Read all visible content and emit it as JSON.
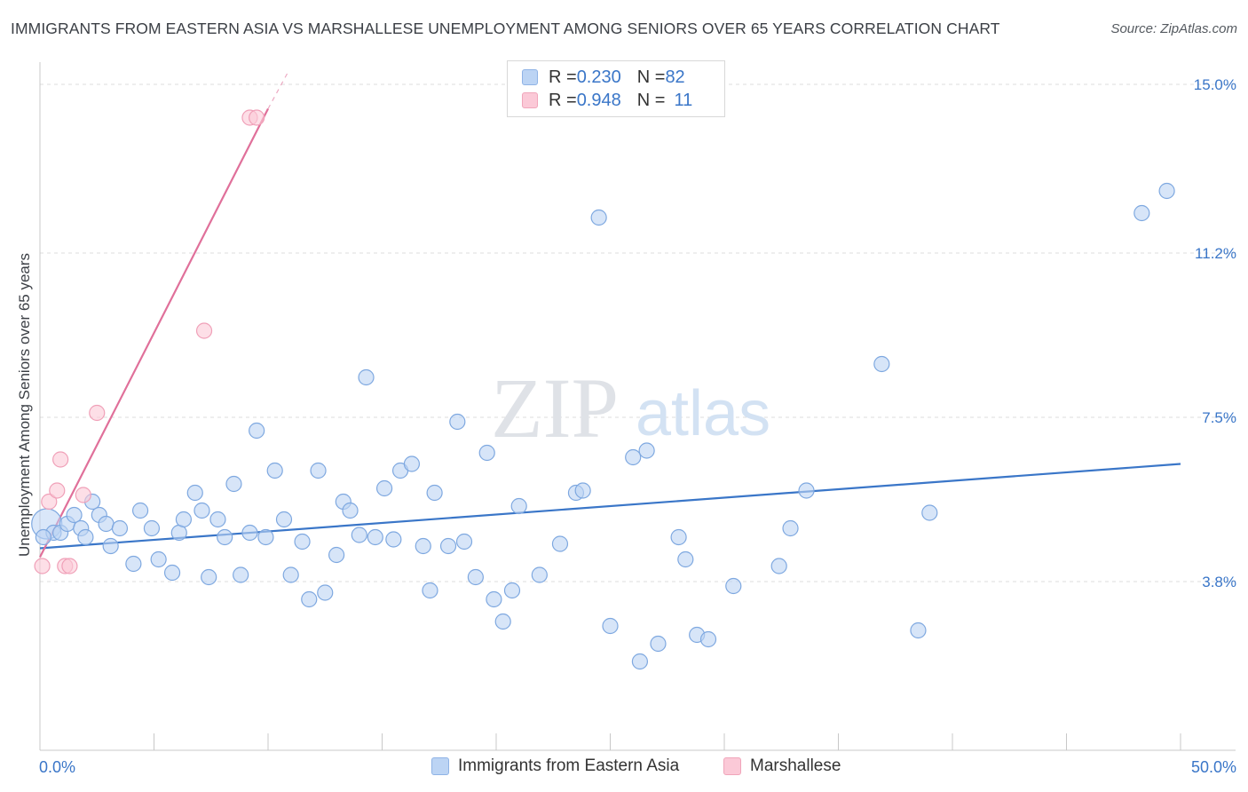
{
  "title": "IMMIGRANTS FROM EASTERN ASIA VS MARSHALLESE UNEMPLOYMENT AMONG SENIORS OVER 65 YEARS CORRELATION CHART",
  "source": "Source: ZipAtlas.com",
  "watermark": {
    "zip": "ZIP",
    "atlas": "atlas"
  },
  "legend": {
    "rows": [
      {
        "r_label": "R = ",
        "r_value": "0.230",
        "n_label": "N = ",
        "n_value": "82"
      },
      {
        "r_label": "R = ",
        "r_value": "0.948",
        "n_label": "N = ",
        "n_value": "11"
      }
    ]
  },
  "colors": {
    "blue": "#3a76c8",
    "blue_fill": "#bcd4f4",
    "blue_stroke": "#7ea8e0",
    "pink": "#e0709a",
    "pink_fill": "#fbc9d7",
    "pink_stroke": "#f0a0b8",
    "tick_label": "#3a76c8",
    "grid": "#dcdcdc"
  },
  "chart_data": {
    "type": "scatter",
    "title": "IMMIGRANTS FROM EASTERN ASIA VS MARSHALLESE UNEMPLOYMENT AMONG SENIORS OVER 65 YEARS CORRELATION CHART",
    "xlabel": "",
    "ylabel": "Unemployment Among Seniors over 65 years",
    "xlim": [
      0,
      50
    ],
    "ylim": [
      0,
      15.3
    ],
    "x_tick_labels": [
      "0.0%",
      "50.0%"
    ],
    "y_ticks": [
      3.8,
      7.5,
      11.2,
      15.0
    ],
    "y_tick_labels": [
      "3.8%",
      "7.5%",
      "11.2%",
      "15.0%"
    ],
    "grid": true,
    "series": [
      {
        "name": "Immigrants from Eastern Asia",
        "color": "blue",
        "trend": {
          "x": [
            0,
            50
          ],
          "y": [
            4.55,
            6.45
          ]
        },
        "points": [
          [
            0.3,
            5.1
          ],
          [
            0.6,
            4.9
          ],
          [
            0.9,
            4.9
          ],
          [
            1.2,
            5.1
          ],
          [
            1.5,
            5.3
          ],
          [
            1.8,
            5.0
          ],
          [
            2.0,
            4.8
          ],
          [
            2.3,
            5.6
          ],
          [
            2.6,
            5.3
          ],
          [
            2.9,
            5.1
          ],
          [
            3.1,
            4.6
          ],
          [
            3.5,
            5.0
          ],
          [
            4.1,
            4.2
          ],
          [
            4.4,
            5.4
          ],
          [
            4.9,
            5.0
          ],
          [
            5.2,
            4.3
          ],
          [
            5.8,
            4.0
          ],
          [
            6.1,
            4.9
          ],
          [
            6.3,
            5.2
          ],
          [
            6.8,
            5.8
          ],
          [
            7.1,
            5.4
          ],
          [
            7.4,
            3.9
          ],
          [
            7.8,
            5.2
          ],
          [
            8.1,
            4.8
          ],
          [
            8.5,
            6.0
          ],
          [
            8.8,
            3.95
          ],
          [
            9.2,
            4.9
          ],
          [
            9.5,
            7.2
          ],
          [
            9.9,
            4.8
          ],
          [
            10.3,
            6.3
          ],
          [
            10.7,
            5.2
          ],
          [
            11.0,
            3.95
          ],
          [
            11.5,
            4.7
          ],
          [
            11.8,
            3.4
          ],
          [
            12.2,
            6.3
          ],
          [
            12.5,
            3.55
          ],
          [
            13.0,
            4.4
          ],
          [
            13.3,
            5.6
          ],
          [
            13.6,
            5.4
          ],
          [
            14.0,
            4.85
          ],
          [
            14.3,
            8.4
          ],
          [
            14.7,
            4.8
          ],
          [
            15.1,
            5.9
          ],
          [
            15.5,
            4.75
          ],
          [
            15.8,
            6.3
          ],
          [
            16.3,
            6.45
          ],
          [
            16.8,
            4.6
          ],
          [
            17.1,
            3.6
          ],
          [
            17.3,
            5.8
          ],
          [
            17.9,
            4.6
          ],
          [
            18.3,
            7.4
          ],
          [
            18.6,
            4.7
          ],
          [
            19.1,
            3.9
          ],
          [
            19.6,
            6.7
          ],
          [
            19.9,
            3.4
          ],
          [
            20.3,
            2.9
          ],
          [
            20.7,
            3.6
          ],
          [
            21.0,
            5.5
          ],
          [
            21.9,
            3.95
          ],
          [
            22.8,
            4.65
          ],
          [
            23.5,
            5.8
          ],
          [
            23.8,
            5.85
          ],
          [
            24.5,
            12.0
          ],
          [
            25.0,
            2.8
          ],
          [
            26.0,
            6.6
          ],
          [
            26.3,
            2.0
          ],
          [
            26.6,
            6.75
          ],
          [
            27.1,
            2.4
          ],
          [
            28.0,
            4.8
          ],
          [
            28.3,
            4.3
          ],
          [
            28.8,
            2.6
          ],
          [
            29.3,
            2.5
          ],
          [
            30.4,
            3.7
          ],
          [
            32.4,
            4.15
          ],
          [
            32.9,
            5.0
          ],
          [
            33.6,
            5.85
          ],
          [
            36.9,
            8.7
          ],
          [
            38.5,
            2.7
          ],
          [
            39.0,
            5.35
          ],
          [
            48.3,
            12.1
          ],
          [
            49.4,
            12.6
          ],
          [
            0.15,
            4.8
          ]
        ]
      },
      {
        "name": "Marshallese",
        "color": "pink",
        "trend": {
          "x": [
            0,
            10.0
          ],
          "y": [
            4.35,
            14.45
          ],
          "dash_to": [
            10.9,
            15.3
          ]
        },
        "points": [
          [
            0.1,
            4.15
          ],
          [
            0.4,
            5.6
          ],
          [
            0.75,
            5.85
          ],
          [
            0.9,
            6.55
          ],
          [
            1.1,
            4.15
          ],
          [
            1.3,
            4.15
          ],
          [
            1.9,
            5.75
          ],
          [
            2.5,
            7.6
          ],
          [
            7.2,
            9.45
          ],
          [
            9.2,
            14.25
          ],
          [
            9.5,
            14.25
          ]
        ]
      }
    ]
  }
}
